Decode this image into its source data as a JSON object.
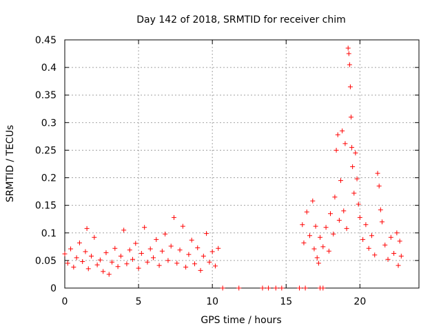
{
  "chart_data": {
    "type": "scatter",
    "title": "Day 142 of 2018, SRMTID for receiver chim",
    "xlabel": "GPS time / hours",
    "ylabel": "SRMTID / TECUs",
    "xlim": [
      0,
      24
    ],
    "ylim": [
      0,
      0.45
    ],
    "x_ticks": [
      0,
      5,
      10,
      15,
      20
    ],
    "x_tick_labels": [
      "0",
      "5",
      "10",
      "15",
      "20"
    ],
    "y_ticks": [
      0,
      0.05,
      0.1,
      0.15,
      0.2,
      0.25,
      0.3,
      0.35,
      0.4,
      0.45
    ],
    "y_tick_labels": [
      "0",
      "0.05",
      "0.1",
      "0.15",
      "0.2",
      "0.25",
      "0.3",
      "0.35",
      "0.4",
      "0.45"
    ],
    "grid": true,
    "marker": "+",
    "series": [
      {
        "name": "SRMTID",
        "color": "#ff0000",
        "points": [
          [
            0.0,
            0.062
          ],
          [
            0.2,
            0.045
          ],
          [
            0.4,
            0.071
          ],
          [
            0.6,
            0.038
          ],
          [
            0.8,
            0.055
          ],
          [
            1.0,
            0.082
          ],
          [
            1.2,
            0.048
          ],
          [
            1.4,
            0.066
          ],
          [
            1.5,
            0.108
          ],
          [
            1.6,
            0.035
          ],
          [
            1.8,
            0.058
          ],
          [
            2.0,
            0.092
          ],
          [
            2.2,
            0.042
          ],
          [
            2.4,
            0.051
          ],
          [
            2.6,
            0.03
          ],
          [
            2.8,
            0.064
          ],
          [
            3.0,
            0.025
          ],
          [
            3.2,
            0.047
          ],
          [
            3.4,
            0.072
          ],
          [
            3.6,
            0.039
          ],
          [
            3.8,
            0.058
          ],
          [
            4.0,
            0.105
          ],
          [
            4.2,
            0.044
          ],
          [
            4.4,
            0.069
          ],
          [
            4.6,
            0.052
          ],
          [
            4.8,
            0.081
          ],
          [
            5.0,
            0.036
          ],
          [
            5.2,
            0.063
          ],
          [
            5.4,
            0.11
          ],
          [
            5.6,
            0.047
          ],
          [
            5.8,
            0.071
          ],
          [
            6.0,
            0.055
          ],
          [
            6.2,
            0.088
          ],
          [
            6.4,
            0.041
          ],
          [
            6.6,
            0.067
          ],
          [
            6.8,
            0.098
          ],
          [
            7.0,
            0.05
          ],
          [
            7.2,
            0.076
          ],
          [
            7.4,
            0.128
          ],
          [
            7.6,
            0.045
          ],
          [
            7.8,
            0.069
          ],
          [
            8.0,
            0.112
          ],
          [
            8.2,
            0.038
          ],
          [
            8.4,
            0.061
          ],
          [
            8.6,
            0.087
          ],
          [
            8.8,
            0.044
          ],
          [
            9.0,
            0.073
          ],
          [
            9.2,
            0.032
          ],
          [
            9.4,
            0.058
          ],
          [
            9.6,
            0.099
          ],
          [
            9.8,
            0.047
          ],
          [
            10.0,
            0.066
          ],
          [
            10.2,
            0.04
          ],
          [
            10.4,
            0.072
          ],
          [
            10.7,
            0.0
          ],
          [
            11.8,
            0.0
          ],
          [
            13.4,
            0.0
          ],
          [
            13.8,
            0.0
          ],
          [
            14.3,
            0.0
          ],
          [
            14.7,
            0.0
          ],
          [
            15.9,
            0.0
          ],
          [
            16.3,
            0.0
          ],
          [
            17.3,
            0.0
          ],
          [
            17.5,
            0.0
          ],
          [
            16.1,
            0.115
          ],
          [
            16.2,
            0.082
          ],
          [
            16.4,
            0.138
          ],
          [
            16.6,
            0.095
          ],
          [
            16.8,
            0.158
          ],
          [
            16.9,
            0.071
          ],
          [
            17.0,
            0.112
          ],
          [
            17.1,
            0.055
          ],
          [
            17.2,
            0.045
          ],
          [
            17.3,
            0.092
          ],
          [
            17.5,
            0.075
          ],
          [
            17.7,
            0.11
          ],
          [
            17.9,
            0.067
          ],
          [
            18.0,
            0.135
          ],
          [
            18.2,
            0.098
          ],
          [
            18.3,
            0.165
          ],
          [
            18.4,
            0.25
          ],
          [
            18.5,
            0.278
          ],
          [
            18.6,
            0.123
          ],
          [
            18.7,
            0.195
          ],
          [
            18.8,
            0.285
          ],
          [
            18.9,
            0.14
          ],
          [
            19.0,
            0.262
          ],
          [
            19.1,
            0.108
          ],
          [
            19.2,
            0.435
          ],
          [
            19.25,
            0.425
          ],
          [
            19.3,
            0.405
          ],
          [
            19.35,
            0.365
          ],
          [
            19.4,
            0.31
          ],
          [
            19.45,
            0.255
          ],
          [
            19.5,
            0.22
          ],
          [
            19.6,
            0.172
          ],
          [
            19.7,
            0.245
          ],
          [
            19.8,
            0.198
          ],
          [
            19.9,
            0.152
          ],
          [
            20.0,
            0.128
          ],
          [
            20.2,
            0.088
          ],
          [
            20.4,
            0.115
          ],
          [
            20.6,
            0.072
          ],
          [
            20.8,
            0.095
          ],
          [
            21.0,
            0.06
          ],
          [
            21.2,
            0.208
          ],
          [
            21.3,
            0.185
          ],
          [
            21.4,
            0.142
          ],
          [
            21.5,
            0.12
          ],
          [
            21.7,
            0.078
          ],
          [
            21.9,
            0.052
          ],
          [
            22.1,
            0.092
          ],
          [
            22.3,
            0.063
          ],
          [
            22.5,
            0.1
          ],
          [
            22.6,
            0.041
          ],
          [
            22.7,
            0.085
          ],
          [
            22.8,
            0.058
          ]
        ]
      }
    ]
  }
}
